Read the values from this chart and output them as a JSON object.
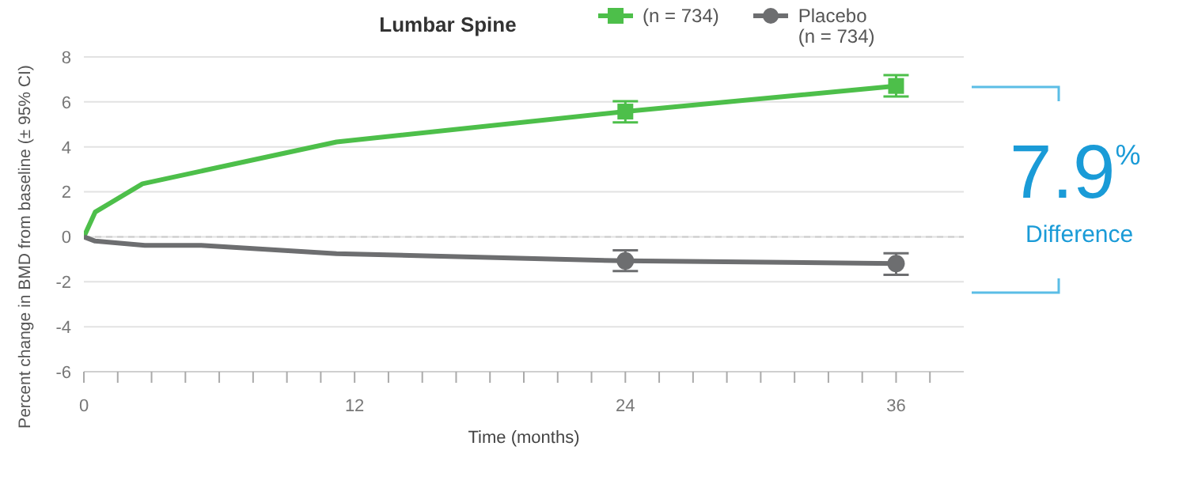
{
  "chart_data": {
    "type": "line",
    "title": "Lumbar Spine",
    "xlabel": "Time (months)",
    "ylabel": "Percent change in BMD from baseline (± 95% CI)",
    "xlim": [
      0,
      39
    ],
    "xticks": [
      0,
      {
        "value": 1.5,
        "label": null
      },
      {
        "value": 3,
        "label": null
      },
      {
        "value": 4.5,
        "label": null
      },
      {
        "value": 6,
        "label": null
      },
      {
        "value": 7.5,
        "label": null
      },
      {
        "value": 9,
        "label": null
      },
      {
        "value": 10.5,
        "label": null
      },
      12,
      {
        "value": 13.5,
        "label": null
      },
      {
        "value": 15,
        "label": null
      },
      {
        "value": 16.5,
        "label": null
      },
      {
        "value": 18,
        "label": null
      },
      {
        "value": 19.5,
        "label": null
      },
      {
        "value": 21,
        "label": null
      },
      {
        "value": 22.5,
        "label": null
      },
      24,
      {
        "value": 25.5,
        "label": null
      },
      {
        "value": 27,
        "label": null
      },
      {
        "value": 28.5,
        "label": null
      },
      {
        "value": 30,
        "label": null
      },
      {
        "value": 31.5,
        "label": null
      },
      {
        "value": 33,
        "label": null
      },
      {
        "value": 34.5,
        "label": null
      },
      36,
      {
        "value": 37.5,
        "label": null
      }
    ],
    "ylim": [
      -6,
      8
    ],
    "yticks": [
      -6,
      -4,
      -2,
      0,
      2,
      4,
      6,
      8
    ],
    "grid": "y",
    "legend": "top right",
    "line_style": "solid",
    "ref_lines": [
      {
        "axis": "y",
        "value": 0,
        "label": null,
        "color": "#cccccc",
        "line_style": "dashed"
      }
    ],
    "series": [
      {
        "name": "(n = 734)",
        "color": "#4dbf4a",
        "marker": "none",
        "x": [
          0,
          0.5,
          2.6,
          11.2,
          24,
          36
        ],
        "values": [
          0,
          1.1,
          2.36,
          4.22,
          5.57,
          6.71
        ]
      },
      {
        "name": "Placebo\n(n = 734)",
        "color": "#6d6e70",
        "marker": "none",
        "x": [
          0,
          0.5,
          2.7,
          5.2,
          11.2,
          24,
          36
        ],
        "values": [
          0,
          -0.19,
          -0.38,
          -0.38,
          -0.75,
          -1.07,
          -1.19
        ]
      },
      {
        "type": "scatter",
        "color": "#4dbf4a",
        "marker": "square",
        "x": [
          24,
          36
        ],
        "values": [
          5.57,
          6.71
        ],
        "errors": [
          [
            5.09,
            6.03
          ],
          [
            6.24,
            7.19
          ]
        ]
      },
      {
        "type": "scatter",
        "color": "#6d6e70",
        "marker": "circle",
        "x": [
          24,
          36
        ],
        "values": [
          -1.07,
          -1.19
        ],
        "errors": [
          [
            -1.52,
            -0.6
          ],
          [
            -1.69,
            -0.73
          ]
        ]
      }
    ],
    "annotations": [
      "7.9%",
      "Difference"
    ]
  }
}
